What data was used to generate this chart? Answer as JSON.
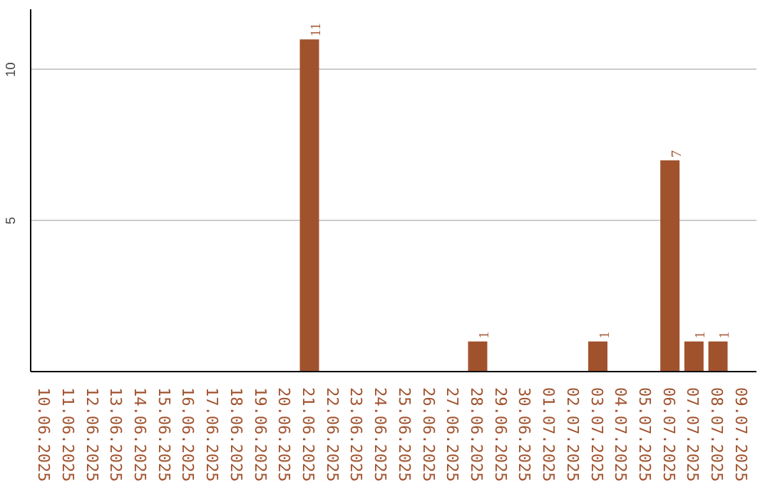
{
  "chart_data": {
    "type": "bar",
    "categories": [
      "10.06.2025",
      "11.06.2025",
      "12.06.2025",
      "13.06.2025",
      "14.06.2025",
      "15.06.2025",
      "16.06.2025",
      "17.06.2025",
      "18.06.2025",
      "19.06.2025",
      "20.06.2025",
      "21.06.2025",
      "22.06.2025",
      "23.06.2025",
      "24.06.2025",
      "25.06.2025",
      "26.06.2025",
      "27.06.2025",
      "28.06.2025",
      "29.06.2025",
      "30.06.2025",
      "01.07.2025",
      "02.07.2025",
      "03.07.2025",
      "04.07.2025",
      "05.07.2025",
      "06.07.2025",
      "07.07.2025",
      "08.07.2025",
      "09.07.2025"
    ],
    "values": [
      0,
      0,
      0,
      0,
      0,
      0,
      0,
      0,
      0,
      0,
      0,
      11,
      0,
      0,
      0,
      0,
      0,
      0,
      1,
      0,
      0,
      0,
      0,
      1,
      0,
      0,
      7,
      1,
      1,
      0
    ],
    "value_labels": [
      null,
      null,
      null,
      null,
      null,
      null,
      null,
      null,
      null,
      null,
      null,
      "11",
      null,
      null,
      null,
      null,
      null,
      null,
      "1",
      null,
      null,
      null,
      null,
      "1",
      null,
      null,
      "7",
      "1",
      "1",
      null
    ],
    "color": "#a0522d",
    "ylim": [
      0,
      12
    ],
    "yticks": [
      5,
      10
    ],
    "grid": "y"
  }
}
